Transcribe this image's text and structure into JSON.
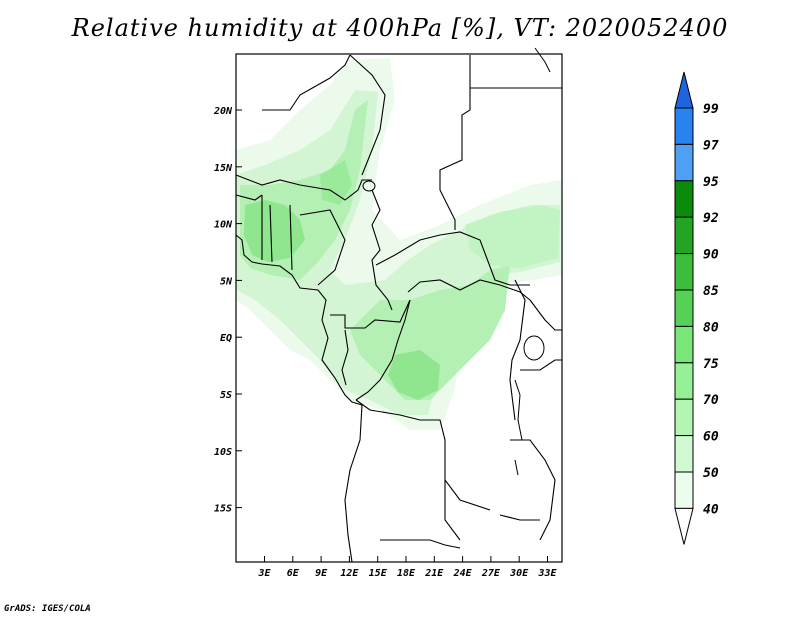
{
  "title": "Relative humidity at 400hPa [%], VT: 2020052400",
  "credit": "GrADS: IGES/COLA",
  "map": {
    "lon_labels": [
      "3E",
      "6E",
      "9E",
      "12E",
      "15E",
      "18E",
      "21E",
      "24E",
      "27E",
      "30E",
      "33E"
    ],
    "lat_labels": [
      "20N",
      "15N",
      "10N",
      "5N",
      "EQ",
      "5S",
      "10S",
      "15S"
    ]
  },
  "colorbar": {
    "levels": [
      "99",
      "97",
      "95",
      "92",
      "90",
      "85",
      "80",
      "75",
      "70",
      "60",
      "50",
      "40"
    ],
    "colors": [
      "#1e64dc",
      "#2882f0",
      "#4ea0f5",
      "#0a8c0a",
      "#23a523",
      "#3cbe3c",
      "#55d255",
      "#78e678",
      "#96f096",
      "#b4f5b4",
      "#d2fad2",
      "#ebfeeb",
      "#ffffff"
    ]
  },
  "colors": {
    "land_outline": "#000000",
    "rh_light": "#e6f8e6",
    "rh_mid": "#b4f0b4",
    "rh_strong": "#7ee07e"
  }
}
